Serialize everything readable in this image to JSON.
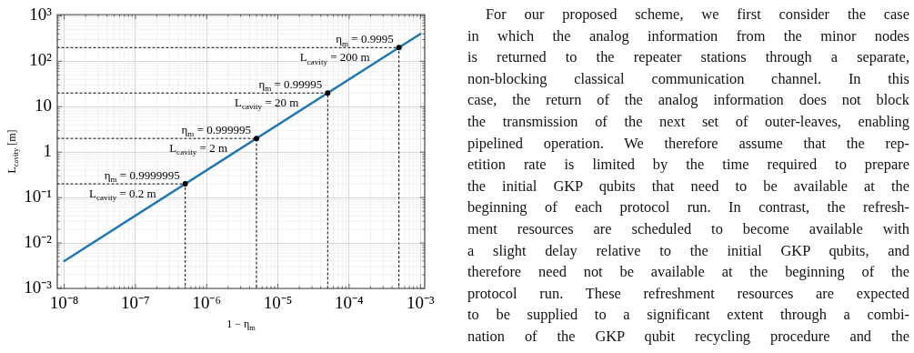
{
  "chart_data": {
    "type": "line",
    "xlabel": "1 − η$_{m}$",
    "ylabel": "L$_{cavity}$ [m]",
    "log": "xy",
    "grid": true,
    "legend": false,
    "xlim": [
      8e-09,
      0.00115
    ],
    "xticks": [
      {
        "value": 1e-08,
        "label": "10⁻⁸"
      },
      {
        "value": 1e-07,
        "label": "10⁻⁷"
      },
      {
        "value": 1e-06,
        "label": "10⁻⁶"
      },
      {
        "value": 1e-05,
        "label": "10⁻⁵"
      },
      {
        "value": 0.0001,
        "label": "10⁻⁴"
      },
      {
        "value": 0.001,
        "label": "10⁻³"
      }
    ],
    "ylim": [
      0.001,
      1000.0
    ],
    "yticks": [
      {
        "value": 0.001,
        "label": "10⁻³"
      },
      {
        "value": 0.01,
        "label": "10⁻²"
      },
      {
        "value": 0.1,
        "label": "10⁻¹"
      },
      1,
      10,
      {
        "value": 100,
        "label": "10²"
      },
      {
        "value": 1000,
        "label": "10³"
      }
    ],
    "series": [
      {
        "type": "line",
        "color": "#1f77b4",
        "marker": "none",
        "x": [
          1e-08,
          0.001
        ],
        "values": [
          0.004,
          400
        ]
      },
      {
        "type": "line",
        "color": "#000000",
        "marker": "none",
        "line_style": "dotted",
        "x": [
          8e-09,
          5e-07,
          5e-07
        ],
        "values": [
          0.2,
          0.2,
          0.001
        ]
      },
      {
        "type": "line",
        "color": "#000000",
        "marker": "none",
        "line_style": "dotted",
        "x": [
          8e-09,
          5e-06,
          5e-06
        ],
        "values": [
          2,
          2,
          0.001
        ]
      },
      {
        "type": "line",
        "color": "#000000",
        "marker": "none",
        "line_style": "dotted",
        "x": [
          8e-09,
          5e-05,
          5e-05
        ],
        "values": [
          20,
          20,
          0.001
        ]
      },
      {
        "type": "line",
        "color": "#000000",
        "marker": "none",
        "line_style": "dotted",
        "x": [
          8e-09,
          0.0005,
          0.0005
        ],
        "values": [
          200,
          200,
          0.001
        ]
      },
      {
        "type": "scatter",
        "color": "#000000",
        "marker": "circle",
        "x": [
          5e-07,
          5e-06,
          5e-05,
          0.0005
        ],
        "values": [
          0.2,
          2,
          20,
          200
        ]
      }
    ],
    "annotations": [
      {
        "text": "η$_{m}$ = 0.9999995",
        "x": 5e-07,
        "y": 0.2
      },
      {
        "text": "L$_{cavity}$ = 0.2 m",
        "x": 5e-07,
        "y": 0.2
      },
      {
        "text": "η$_{m}$ = 0.999995",
        "x": 5e-06,
        "y": 2
      },
      {
        "text": "L$_{cavity}$ = 2 m",
        "x": 5e-06,
        "y": 2
      },
      {
        "text": "η$_{m}$ = 0.99995",
        "x": 5e-05,
        "y": 20
      },
      {
        "text": "L$_{cavity}$ = 20 m",
        "x": 5e-05,
        "y": 20
      },
      {
        "text": "η$_{m}$ = 0.9995",
        "x": 0.0005,
        "y": 200
      },
      {
        "text": "L$_{cavity}$ = 200 m",
        "x": 0.0005,
        "y": 200
      },
      "For our proposed scheme, we first consider the case\nin which the analog information from the minor nodes\nis returned to the repeater stations through a separate,\nnon-blocking classical communication channel. In this\ncase, the return of the analog information does not block\nthe transmission of the next set of outer-leaves, enabling\npipelined operation. We therefore assume that the rep-\netition rate is limited by the time required to prepare\nthe initial GKP qubits that need to be available at the\nbeginning of each protocol run. In contrast, the refresh-\nment resources are scheduled to become available with\na slight delay relative to the initial GKP qubits, and\ntherefore need not be available at the beginning of the\nprotocol run. These refreshment resources are expected\nto be supplied to a significant extent through a combi-\nnation of the GKP qubit recycling procedure and the"
    ]
  }
}
